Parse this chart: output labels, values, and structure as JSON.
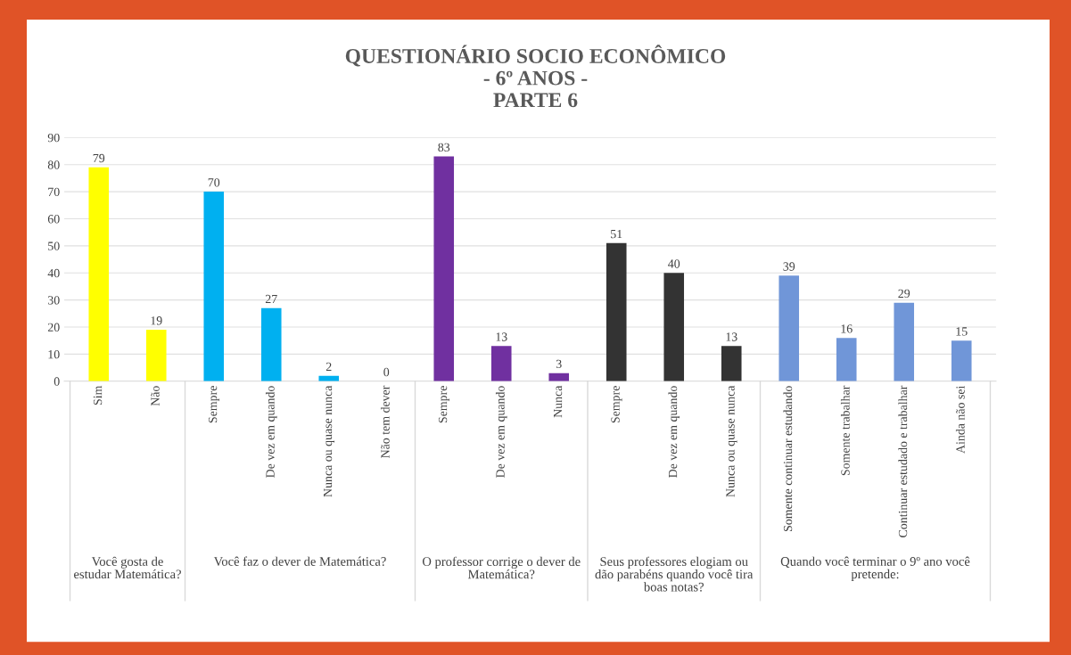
{
  "chart_data": {
    "type": "bar",
    "title": "QUESTIONÁRIO SOCIO ECONÔMICO\n- 6º ANOS -\nPARTE 6",
    "categories": [
      "Sim",
      "Não",
      "Sempre",
      "De vez em quando",
      "Nunca ou quase nunca",
      "Não tem dever",
      "Sempre",
      "De vez em quando",
      "Nunca",
      "Sempre",
      "De vez em quando",
      "Nunca ou quase nunca",
      "Somente continuar estudando",
      "Somente trabalhar",
      "Continuar estudado e trabalhar",
      "Ainda não sei"
    ],
    "values": [
      79,
      19,
      70,
      27,
      2,
      0,
      83,
      13,
      3,
      51,
      40,
      13,
      39,
      16,
      29,
      15
    ],
    "colors": [
      "#ffff00",
      "#ffff00",
      "#00b0f0",
      "#00b0f0",
      "#00b0f0",
      "#00b0f0",
      "#7030a0",
      "#7030a0",
      "#7030a0",
      "#333333",
      "#333333",
      "#333333",
      "#7096d8",
      "#7096d8",
      "#7096d8",
      "#7096d8"
    ],
    "annotations": [
      "Você gosta de estudar Matemática?",
      "Você faz o dever de Matemática?",
      "O professor corrige o dever de Matemática?",
      "Seus professores elogiam ou dão parabéns quando você tira boas notas?",
      "Quando você terminar o 9º ano você pretende:"
    ],
    "ylim": [
      0,
      90
    ],
    "yticks": [
      0,
      10,
      20,
      30,
      40,
      50,
      60,
      70,
      80,
      90
    ],
    "grid": "y",
    "data_labels": true
  }
}
